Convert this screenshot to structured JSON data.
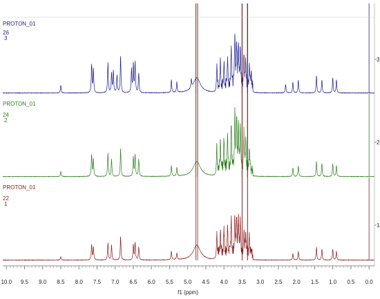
{
  "chart_data": {
    "type": "line",
    "xlabel": "f1 (ppm)",
    "xlim": [
      10.1,
      -0.15
    ],
    "x_ticks": [
      "10.0",
      "9.5",
      "9.0",
      "8.5",
      "8.0",
      "7.5",
      "7.0",
      "6.5",
      "6.0",
      "5.5",
      "5.0",
      "4.5",
      "4.0",
      "3.5",
      "3.0",
      "2.5",
      "2.0",
      "1.5",
      "1.0",
      "0.5",
      "0.0"
    ],
    "right_ticks": [
      "3",
      "2",
      "1"
    ],
    "series": [
      {
        "name": "PROTON_01",
        "number": "26",
        "trace": "3",
        "color": "#1c1c8c",
        "peaks": [
          [
            8.5,
            0.18
          ],
          [
            7.65,
            0.65
          ],
          [
            7.6,
            0.55
          ],
          [
            7.2,
            0.7
          ],
          [
            7.1,
            0.45
          ],
          [
            7.05,
            0.5
          ],
          [
            6.95,
            0.4
          ],
          [
            6.85,
            0.85
          ],
          [
            6.55,
            0.55
          ],
          [
            6.5,
            0.65
          ],
          [
            6.45,
            0.7
          ],
          [
            6.35,
            0.45
          ],
          [
            5.45,
            0.3
          ],
          [
            5.3,
            0.25
          ],
          [
            4.9,
            0.2
          ],
          [
            4.2,
            0.5
          ],
          [
            4.1,
            0.6
          ],
          [
            4.0,
            0.55
          ],
          [
            3.9,
            0.75
          ],
          [
            3.8,
            0.95
          ],
          [
            3.7,
            1.2
          ],
          [
            3.65,
            1.0
          ],
          [
            3.6,
            0.9
          ],
          [
            3.55,
            0.85
          ],
          [
            3.45,
            0.7
          ],
          [
            3.4,
            0.65
          ],
          [
            3.3,
            0.5
          ],
          [
            3.25,
            0.4
          ],
          [
            2.3,
            0.2
          ],
          [
            2.1,
            0.25
          ],
          [
            1.95,
            0.3
          ],
          [
            1.45,
            0.4
          ],
          [
            1.3,
            0.3
          ],
          [
            1.0,
            0.35
          ],
          [
            0.9,
            0.3
          ]
        ]
      },
      {
        "name": "PROTON_01",
        "number": "24",
        "trace": "2",
        "color": "#2e7d1f",
        "peaks": [
          [
            8.5,
            0.12
          ],
          [
            7.65,
            0.5
          ],
          [
            7.6,
            0.4
          ],
          [
            7.2,
            0.55
          ],
          [
            7.1,
            0.4
          ],
          [
            6.85,
            0.65
          ],
          [
            6.5,
            0.45
          ],
          [
            6.45,
            0.5
          ],
          [
            6.35,
            0.4
          ],
          [
            5.45,
            0.25
          ],
          [
            5.3,
            0.2
          ],
          [
            4.2,
            0.6
          ],
          [
            4.1,
            0.7
          ],
          [
            4.0,
            0.75
          ],
          [
            3.9,
            0.9
          ],
          [
            3.8,
            1.1
          ],
          [
            3.7,
            1.3
          ],
          [
            3.65,
            1.2
          ],
          [
            3.6,
            1.0
          ],
          [
            3.55,
            0.95
          ],
          [
            3.45,
            0.9
          ],
          [
            3.4,
            0.8
          ],
          [
            3.3,
            0.55
          ],
          [
            2.1,
            0.2
          ],
          [
            1.95,
            0.25
          ],
          [
            1.45,
            0.35
          ],
          [
            1.3,
            0.3
          ],
          [
            1.0,
            0.3
          ],
          [
            0.9,
            0.25
          ]
        ]
      },
      {
        "name": "PROTON_01",
        "number": "22",
        "trace": "1",
        "color": "#8b1a1a",
        "peaks": [
          [
            8.5,
            0.08
          ],
          [
            7.65,
            0.35
          ],
          [
            7.6,
            0.3
          ],
          [
            7.2,
            0.4
          ],
          [
            7.1,
            0.35
          ],
          [
            6.85,
            0.55
          ],
          [
            6.5,
            0.35
          ],
          [
            6.45,
            0.4
          ],
          [
            6.35,
            0.3
          ],
          [
            5.45,
            0.2
          ],
          [
            5.3,
            0.15
          ],
          [
            4.2,
            0.5
          ],
          [
            4.1,
            0.55
          ],
          [
            4.0,
            0.6
          ],
          [
            3.9,
            0.7
          ],
          [
            3.8,
            0.8
          ],
          [
            3.7,
            0.9
          ],
          [
            3.65,
            0.85
          ],
          [
            3.6,
            0.8
          ],
          [
            3.55,
            0.7
          ],
          [
            3.45,
            0.6
          ],
          [
            3.4,
            0.5
          ],
          [
            3.3,
            0.4
          ],
          [
            2.1,
            0.15
          ],
          [
            1.95,
            0.2
          ],
          [
            1.45,
            0.3
          ],
          [
            1.3,
            0.25
          ],
          [
            1.0,
            0.25
          ],
          [
            0.9,
            0.2
          ]
        ]
      }
    ],
    "solvent_peak_ppm": 4.75,
    "tall_peaks_ppm": [
      3.5,
      3.35
    ],
    "grid": false
  }
}
